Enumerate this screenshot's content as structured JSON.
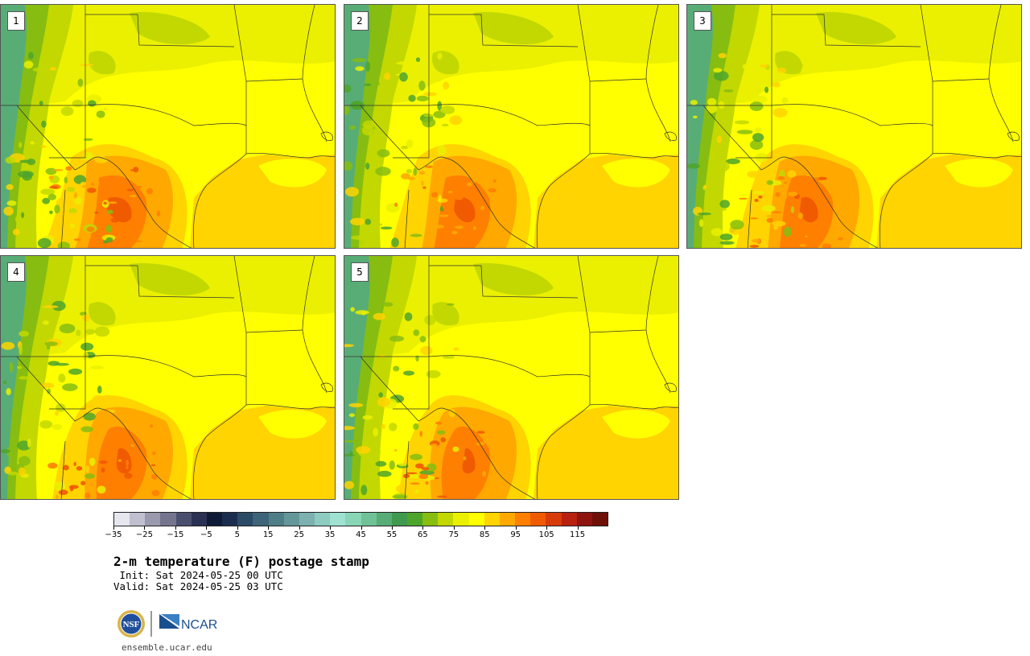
{
  "panels": [
    {
      "label": "1",
      "variant": 1
    },
    {
      "label": "2",
      "variant": 2
    },
    {
      "label": "3",
      "variant": 3
    },
    {
      "label": "4",
      "variant": 4
    },
    {
      "label": "5",
      "variant": 5
    }
  ],
  "colorbar": {
    "colors": [
      "#e6e6ef",
      "#bfbfcf",
      "#9a9aae",
      "#74748e",
      "#4b4f6e",
      "#2a3152",
      "#0f1a36",
      "#1b2d4e",
      "#2b4a66",
      "#3d6478",
      "#4f7e88",
      "#64979a",
      "#7cb1af",
      "#8ecbc0",
      "#9fe2d1",
      "#88d6b6",
      "#70c296",
      "#58ad76",
      "#3f9a4f",
      "#4ea52b",
      "#86bd10",
      "#c2d800",
      "#eaf000",
      "#ffff00",
      "#ffd400",
      "#ffa800",
      "#ff7f00",
      "#f05a00",
      "#d83a0a",
      "#b82010",
      "#8e1410",
      "#6e1008"
    ],
    "tick_labels": [
      "−35",
      "−25",
      "−15",
      "−5",
      "5",
      "15",
      "25",
      "35",
      "45",
      "55",
      "65",
      "75",
      "85",
      "95",
      "105",
      "115"
    ]
  },
  "title": "2-m temperature (F) postage stamp",
  "init": " Init: Sat 2024-05-25 00 UTC",
  "valid": "Valid: Sat 2024-05-25 03 UTC",
  "logos": {
    "left": "NSF",
    "right": "NCAR"
  },
  "site": "ensemble.ucar.edu"
}
